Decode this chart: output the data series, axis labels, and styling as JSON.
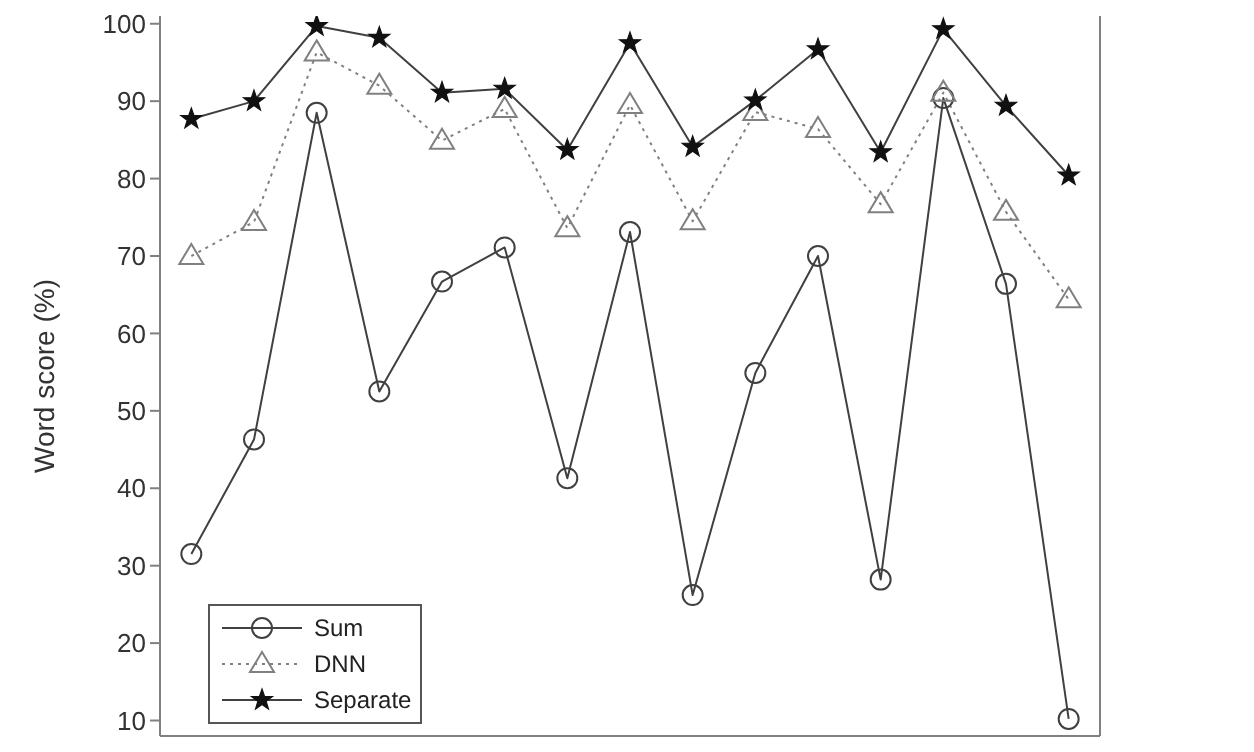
{
  "chart_data": {
    "type": "line",
    "ylabel": "Word score (%)",
    "categories": [
      null,
      null,
      null,
      null,
      null,
      null,
      null,
      null,
      null,
      null,
      null,
      null,
      null,
      null,
      null
    ],
    "series": [
      {
        "name": "Sum",
        "color": "#404040",
        "marker": "circle",
        "line_style": "solid",
        "values": [
          31.5,
          46.3,
          88.5,
          52.5,
          66.7,
          71.1,
          41.3,
          73.1,
          26.2,
          54.9,
          70.0,
          28.2,
          90.4,
          66.4,
          10.2
        ]
      },
      {
        "name": "DNN",
        "color": "#808080",
        "marker": "triangle",
        "line_style": "dotted",
        "values": [
          70.0,
          74.4,
          96.3,
          92.0,
          84.9,
          89.0,
          73.6,
          89.5,
          74.5,
          88.6,
          86.4,
          76.7,
          91.1,
          75.7,
          64.4
        ]
      },
      {
        "name": "Separate",
        "color": "#404040",
        "marker": "star",
        "line_style": "solid",
        "values": [
          87.7,
          90.0,
          99.7,
          98.2,
          91.1,
          91.6,
          83.7,
          97.5,
          84.1,
          90.1,
          96.7,
          83.4,
          99.3,
          89.4,
          80.4
        ]
      }
    ],
    "ylim": [
      8,
      101
    ],
    "yticks": [
      10,
      20,
      30,
      40,
      50,
      60,
      70,
      80,
      90,
      100
    ],
    "grid": false,
    "legend": "bottom left",
    "tick_labels": "y"
  }
}
